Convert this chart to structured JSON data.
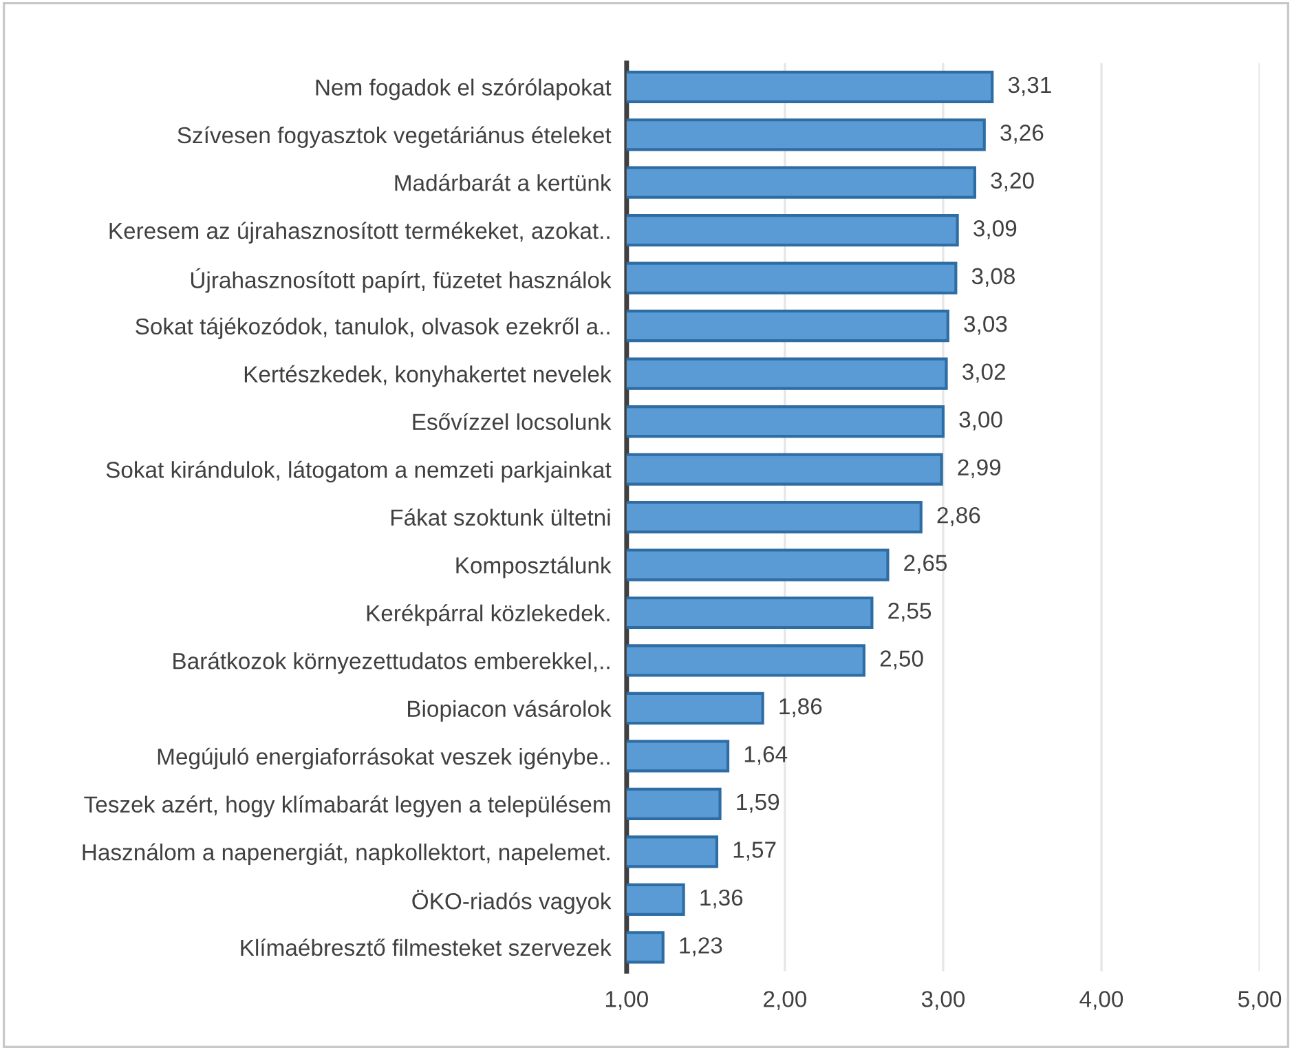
{
  "chart_data": {
    "type": "bar",
    "orientation": "horizontal",
    "categories": [
      "Nem fogadok el szórólapokat",
      "Szívesen fogyasztok vegetáriánus ételeket",
      "Madárbarát a kertünk",
      "Keresem az újrahasznosított termékeket, azokat..",
      "Újrahasznosított papírt, füzetet használok",
      "Sokat tájékozódok, tanulok, olvasok ezekről a..",
      "Kertészkedek, konyhakertet nevelek",
      "Esővízzel locsolunk",
      "Sokat kirándulok, látogatom a nemzeti parkjainkat",
      "Fákat szoktunk ültetni",
      "Komposztálunk",
      "Kerékpárral közlekedek.",
      "Barátkozok környezettudatos emberekkel,..",
      "Biopiacon vásárolok",
      "Megújuló energiaforrásokat veszek igénybe..",
      "Teszek azért, hogy klímabarát legyen a településem",
      "Használom a napenergiát, napkollektort, napelemet.",
      "ÖKO-riadós vagyok",
      "Klímaébresztő filmesteket szervezek"
    ],
    "values": [
      3.31,
      3.26,
      3.2,
      3.09,
      3.08,
      3.03,
      3.02,
      3.0,
      2.99,
      2.86,
      2.65,
      2.55,
      2.5,
      1.86,
      1.64,
      1.59,
      1.57,
      1.36,
      1.23
    ],
    "value_labels": [
      "3,31",
      "3,26",
      "3,20",
      "3,09",
      "3,08",
      "3,03",
      "3,02",
      "3,00",
      "2,99",
      "2,86",
      "2,65",
      "2,55",
      "2,50",
      "1,86",
      "1,64",
      "1,59",
      "1,57",
      "1,36",
      "1,23"
    ],
    "color": "#5b9bd5",
    "xlim": [
      1,
      5
    ],
    "xticks": [
      {
        "value": 1,
        "label": "1,00"
      },
      {
        "value": 2,
        "label": "2,00"
      },
      {
        "value": 3,
        "label": "3,00"
      },
      {
        "value": 4,
        "label": "4,00"
      },
      {
        "value": 5,
        "label": "5,00"
      }
    ],
    "grid": "x",
    "legend": false
  }
}
